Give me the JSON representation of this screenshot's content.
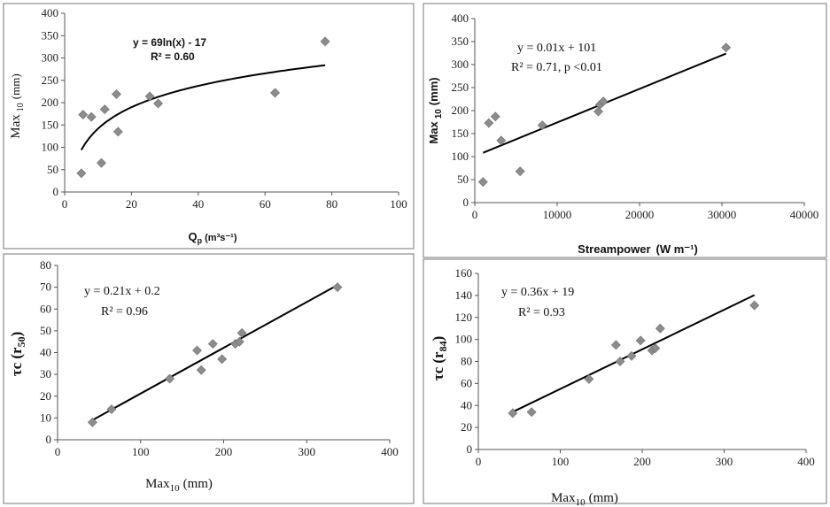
{
  "chart_data": [
    {
      "type": "scatter",
      "xlabel": "Q",
      "xlabel_sub": "p",
      "xlabel_unit": "(m³s⁻¹)",
      "ylabel": "Max",
      "ylabel_sub": "10",
      "ylabel_unit": "(mm)",
      "xlim": [
        0,
        100
      ],
      "ylim": [
        0,
        400
      ],
      "xticks": [
        "0",
        "20",
        "40",
        "60",
        "80",
        "100"
      ],
      "yticks": [
        "0",
        "50",
        "100",
        "150",
        "200",
        "250",
        "300",
        "350",
        "400"
      ],
      "equation": "y = 69ln(x) - 17",
      "r2": "R² = 0.60",
      "trend": {
        "kind": "log",
        "a": 69,
        "b": -17,
        "x_from": 5,
        "x_to": 78
      },
      "marker_color": "#8c8c8c",
      "points": [
        {
          "x": 5,
          "y": 42
        },
        {
          "x": 5.5,
          "y": 173
        },
        {
          "x": 8,
          "y": 168
        },
        {
          "x": 11,
          "y": 65
        },
        {
          "x": 12,
          "y": 185
        },
        {
          "x": 15.5,
          "y": 219
        },
        {
          "x": 16,
          "y": 135
        },
        {
          "x": 25.5,
          "y": 214
        },
        {
          "x": 28,
          "y": 198
        },
        {
          "x": 63,
          "y": 222
        },
        {
          "x": 78,
          "y": 337
        }
      ]
    },
    {
      "type": "scatter",
      "xlabel": "Streampower",
      "xlabel_unit": "(W m⁻¹)",
      "ylabel": "Max",
      "ylabel_sub": "10",
      "ylabel_unit": "(mm)",
      "xlim": [
        0,
        40000
      ],
      "ylim": [
        0,
        400
      ],
      "xticks": [
        "0",
        "10000",
        "20000",
        "30000",
        "40000"
      ],
      "yticks": [
        "0",
        "50",
        "100",
        "150",
        "200",
        "250",
        "300",
        "350",
        "400"
      ],
      "equation": "y = 0.01x + 101",
      "r2": "R² = 0.71,  p <0.01",
      "trend": {
        "kind": "linear",
        "m": 0.00731,
        "c": 101,
        "x_from": 1000,
        "x_to": 30500
      },
      "marker_color": "#8c8c8c",
      "points": [
        {
          "x": 1000,
          "y": 45
        },
        {
          "x": 1700,
          "y": 173
        },
        {
          "x": 2500,
          "y": 187
        },
        {
          "x": 3200,
          "y": 135
        },
        {
          "x": 5500,
          "y": 68
        },
        {
          "x": 8200,
          "y": 168
        },
        {
          "x": 15000,
          "y": 198
        },
        {
          "x": 15200,
          "y": 213
        },
        {
          "x": 15600,
          "y": 220
        },
        {
          "x": 30500,
          "y": 337
        }
      ]
    },
    {
      "type": "scatter",
      "xlabel": "Max",
      "xlabel_sub": "10",
      "xlabel_unit": "(mm)",
      "ylabel": "τc (r",
      "ylabel_sub": "50",
      "ylabel_unit": ")",
      "xlim": [
        0,
        400
      ],
      "ylim": [
        0,
        80
      ],
      "xticks": [
        "0",
        "100",
        "200",
        "300",
        "400"
      ],
      "yticks": [
        "0",
        "10",
        "20",
        "30",
        "40",
        "50",
        "60",
        "70",
        "80"
      ],
      "equation": "y = 0.21x + 0.2",
      "r2": "R² = 0.96",
      "trend": {
        "kind": "linear",
        "m": 0.21,
        "c": 0.2,
        "x_from": 40,
        "x_to": 337
      },
      "marker_color": "#8c8c8c",
      "points": [
        {
          "x": 42,
          "y": 8
        },
        {
          "x": 65,
          "y": 14
        },
        {
          "x": 135,
          "y": 28
        },
        {
          "x": 168,
          "y": 41
        },
        {
          "x": 173,
          "y": 32
        },
        {
          "x": 187,
          "y": 44
        },
        {
          "x": 198,
          "y": 37
        },
        {
          "x": 214,
          "y": 44
        },
        {
          "x": 219,
          "y": 45
        },
        {
          "x": 222,
          "y": 49
        },
        {
          "x": 337,
          "y": 70
        }
      ]
    },
    {
      "type": "scatter",
      "xlabel": "Max",
      "xlabel_sub": "10",
      "xlabel_unit": "(mm)",
      "ylabel": "τc (r",
      "ylabel_sub": "84",
      "ylabel_unit": ")",
      "xlim": [
        0,
        400
      ],
      "ylim": [
        0,
        160
      ],
      "xticks": [
        "0",
        "100",
        "200",
        "300",
        "400"
      ],
      "yticks": [
        "0",
        "20",
        "40",
        "60",
        "80",
        "100",
        "120",
        "140",
        "160"
      ],
      "equation": "y = 0.36x + 19",
      "r2": "R² = 0.93",
      "trend": {
        "kind": "linear",
        "m": 0.36,
        "c": 19,
        "x_from": 40,
        "x_to": 337
      },
      "marker_color": "#8c8c8c",
      "points": [
        {
          "x": 42,
          "y": 33
        },
        {
          "x": 65,
          "y": 34
        },
        {
          "x": 135,
          "y": 64
        },
        {
          "x": 168,
          "y": 95
        },
        {
          "x": 173,
          "y": 80
        },
        {
          "x": 187,
          "y": 85
        },
        {
          "x": 198,
          "y": 99
        },
        {
          "x": 212,
          "y": 90
        },
        {
          "x": 216,
          "y": 92
        },
        {
          "x": 222,
          "y": 110
        },
        {
          "x": 337,
          "y": 131
        }
      ]
    }
  ]
}
